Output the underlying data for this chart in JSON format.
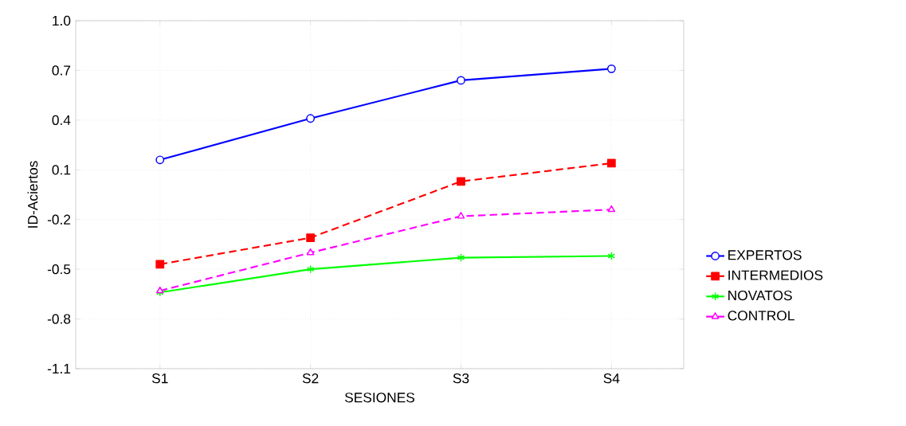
{
  "chart_data": {
    "type": "line",
    "xlabel": "SESIONES",
    "ylabel": "ID-Aciertos",
    "categories": [
      "S1",
      "S2",
      "S3",
      "S4"
    ],
    "series": [
      {
        "name": "EXPERTOS",
        "color": "#0000ff",
        "marker": "circle",
        "line_style": "solid",
        "values": [
          0.16,
          0.41,
          0.64,
          0.71
        ]
      },
      {
        "name": "INTERMEDIOS",
        "color": "#ff0000",
        "marker": "square",
        "line_style": "dashed",
        "values": [
          -0.47,
          -0.31,
          0.03,
          0.14
        ]
      },
      {
        "name": "NOVATOS",
        "color": "#00ff00",
        "marker": "cross",
        "line_style": "solid",
        "values": [
          -0.64,
          -0.5,
          -0.43,
          -0.42
        ]
      },
      {
        "name": "CONTROL",
        "color": "#ff00ff",
        "marker": "triangle",
        "line_style": "dashed",
        "values": [
          -0.63,
          -0.4,
          -0.18,
          -0.14
        ]
      }
    ],
    "ylim": [
      -1.1,
      1.0
    ],
    "yticks": [
      {
        "value": -1.1,
        "label": "-1.1"
      },
      {
        "value": -0.8,
        "label": "-0.8"
      },
      {
        "value": -0.5,
        "label": "-0.5"
      },
      {
        "value": -0.2,
        "label": "-0.2"
      },
      {
        "value": 0.1,
        "label": "0.1"
      },
      {
        "value": 0.4,
        "label": "0.4"
      },
      {
        "value": 0.7,
        "label": "0.7"
      },
      {
        "value": 1.0,
        "label": "1.0"
      }
    ],
    "grid": true,
    "legend": "right"
  }
}
